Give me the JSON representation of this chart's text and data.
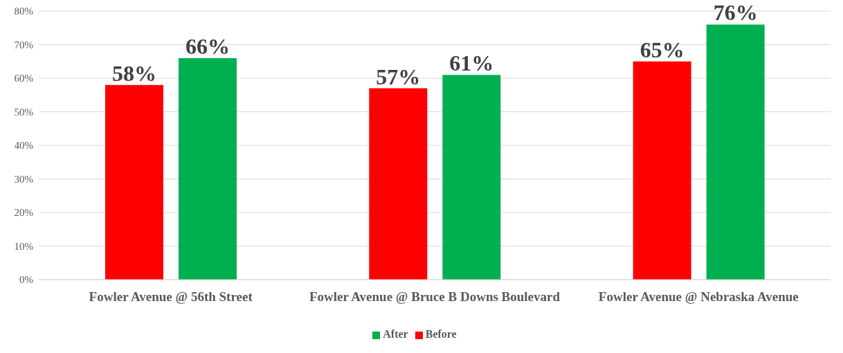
{
  "chart_data": {
    "type": "bar",
    "categories": [
      "Fowler Avenue @ 56th Street",
      "Fowler Avenue @ Bruce B Downs Boulevard",
      "Fowler Avenue @ Nebraska Avenue"
    ],
    "series": [
      {
        "name": "Before",
        "color": "#ff0000",
        "values": [
          58,
          57,
          65
        ],
        "value_labels": [
          "58%",
          "57%",
          "65%"
        ]
      },
      {
        "name": "After",
        "color": "#00b050",
        "values": [
          66,
          61,
          76
        ],
        "value_labels": [
          "66%",
          "61%",
          "76%"
        ]
      }
    ],
    "ylim": [
      0,
      80
    ],
    "yticks": [
      {
        "value": 0,
        "label": "0%"
      },
      {
        "value": 10,
        "label": "10%"
      },
      {
        "value": 20,
        "label": "20%"
      },
      {
        "value": 30,
        "label": "30%"
      },
      {
        "value": 40,
        "label": "40%"
      },
      {
        "value": 50,
        "label": "50%"
      },
      {
        "value": 60,
        "label": "60%"
      },
      {
        "value": 70,
        "label": "70%"
      },
      {
        "value": 80,
        "label": "80%"
      }
    ],
    "grid": "y",
    "legend": "bottom"
  }
}
